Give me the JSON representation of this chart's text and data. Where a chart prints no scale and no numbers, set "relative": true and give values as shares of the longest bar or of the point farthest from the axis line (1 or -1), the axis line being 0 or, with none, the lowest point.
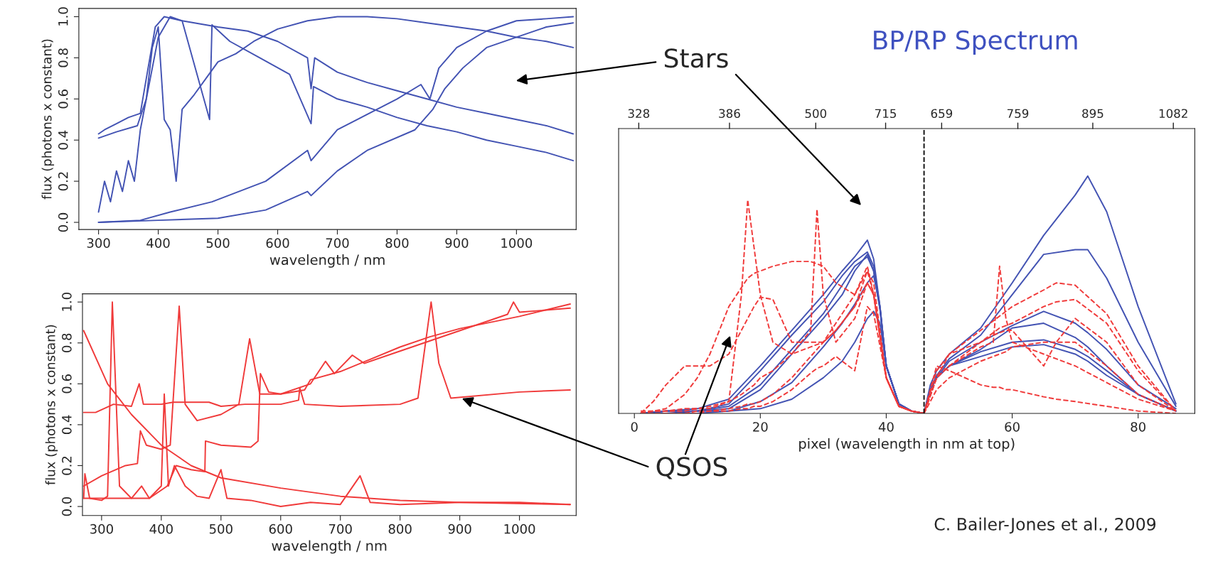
{
  "chart_data": [
    {
      "type": "line",
      "xlabel": "wavelength / nm",
      "ylabel": "flux (photons x constant)",
      "xlim": [
        267,
        1100
      ],
      "ylim": [
        -0.035,
        1.04
      ],
      "xticks": [
        300,
        400,
        500,
        600,
        700,
        800,
        900,
        1000
      ],
      "yticks": [
        {
          "value": 0,
          "label": "0.0"
        },
        {
          "value": 0.2,
          "label": "0.2"
        },
        {
          "value": 0.4,
          "label": "0.4"
        },
        {
          "value": 0.6,
          "label": "0.6"
        },
        {
          "value": 0.8,
          "label": "0.8"
        },
        {
          "value": 1,
          "label": "1.0"
        }
      ],
      "grid": false,
      "legend": false,
      "marker": "none",
      "line_style": "solid",
      "series": [
        {
          "color": "#4353b3",
          "x": [
            300,
            310,
            330,
            350,
            370,
            380,
            395,
            410,
            440,
            500,
            550,
            600,
            650,
            656,
            662,
            700,
            750,
            800,
            850,
            900,
            950,
            1000,
            1050,
            1095
          ],
          "values": [
            0.43,
            0.45,
            0.48,
            0.51,
            0.53,
            0.7,
            0.95,
            1.0,
            0.98,
            0.95,
            0.93,
            0.88,
            0.8,
            0.65,
            0.8,
            0.73,
            0.68,
            0.64,
            0.6,
            0.56,
            0.53,
            0.5,
            0.47,
            0.43
          ]
        },
        {
          "color": "#4353b3",
          "x": [
            300,
            330,
            365,
            380,
            400,
            420,
            440,
            486,
            490,
            520,
            570,
            620,
            656,
            660,
            700,
            750,
            800,
            850,
            900,
            950,
            1000,
            1050,
            1095
          ],
          "values": [
            0.41,
            0.44,
            0.47,
            0.6,
            0.9,
            1.0,
            0.98,
            0.5,
            0.96,
            0.88,
            0.8,
            0.72,
            0.48,
            0.66,
            0.6,
            0.56,
            0.51,
            0.47,
            0.44,
            0.4,
            0.37,
            0.34,
            0.3
          ]
        },
        {
          "color": "#4353b3",
          "x": [
            300,
            310,
            320,
            330,
            340,
            350,
            360,
            370,
            380,
            390,
            400,
            410,
            420,
            430,
            440,
            460,
            480,
            500,
            530,
            560,
            600,
            650,
            700,
            750,
            800,
            850,
            900,
            950,
            1000,
            1050,
            1095
          ],
          "values": [
            0.05,
            0.2,
            0.1,
            0.25,
            0.15,
            0.3,
            0.2,
            0.45,
            0.6,
            0.85,
            0.95,
            0.5,
            0.45,
            0.2,
            0.55,
            0.62,
            0.7,
            0.78,
            0.82,
            0.88,
            0.94,
            0.98,
            1.0,
            1.0,
            0.99,
            0.97,
            0.95,
            0.93,
            0.9,
            0.88,
            0.85
          ]
        },
        {
          "color": "#4353b3",
          "x": [
            300,
            370,
            420,
            490,
            580,
            650,
            656,
            700,
            800,
            840,
            855,
            870,
            900,
            950,
            1000,
            1050,
            1095
          ],
          "values": [
            0.0,
            0.01,
            0.05,
            0.1,
            0.2,
            0.35,
            0.3,
            0.45,
            0.6,
            0.67,
            0.6,
            0.75,
            0.85,
            0.93,
            0.98,
            0.99,
            1.0
          ]
        },
        {
          "color": "#4353b3",
          "x": [
            300,
            400,
            500,
            580,
            650,
            656,
            700,
            750,
            830,
            860,
            880,
            910,
            950,
            1000,
            1050,
            1095
          ],
          "values": [
            0.0,
            0.01,
            0.02,
            0.06,
            0.15,
            0.13,
            0.25,
            0.35,
            0.45,
            0.55,
            0.65,
            0.75,
            0.85,
            0.9,
            0.95,
            0.97
          ]
        }
      ]
    },
    {
      "type": "line",
      "xlabel": "wavelength / nm",
      "ylabel": "flux (photons x constant)",
      "xlim": [
        268,
        1095
      ],
      "ylim": [
        -0.044,
        1.04
      ],
      "xticks": [
        300,
        400,
        500,
        600,
        700,
        800,
        900,
        1000
      ],
      "yticks": [
        {
          "value": 0,
          "label": "0.0"
        },
        {
          "value": 0.2,
          "label": "0.2"
        },
        {
          "value": 0.4,
          "label": "0.4"
        },
        {
          "value": 0.6,
          "label": "0.6"
        },
        {
          "value": 0.8,
          "label": "0.8"
        },
        {
          "value": 1,
          "label": "1.0"
        }
      ],
      "grid": false,
      "legend": false,
      "marker": "none",
      "line_style": "solid",
      "series": [
        {
          "color": "#f03a3a",
          "x": [
            270,
            290,
            320,
            350,
            363,
            370,
            400,
            420,
            480,
            500,
            540,
            600,
            630,
            632,
            640,
            700,
            800,
            830,
            852,
            865,
            885,
            1000,
            1085
          ],
          "values": [
            0.46,
            0.46,
            0.5,
            0.49,
            0.6,
            0.5,
            0.5,
            0.51,
            0.51,
            0.49,
            0.5,
            0.5,
            0.52,
            0.58,
            0.5,
            0.49,
            0.5,
            0.53,
            1.0,
            0.7,
            0.53,
            0.56,
            0.57
          ]
        },
        {
          "color": "#f03a3a",
          "x": [
            270,
            272,
            280,
            300,
            310,
            318,
            330,
            350,
            367,
            380,
            400,
            405,
            412,
            422,
            440,
            460,
            480,
            500,
            510,
            550,
            600,
            650,
            700,
            733,
            750,
            800,
            900,
            1000,
            1085
          ],
          "values": [
            0.04,
            0.16,
            0.04,
            0.03,
            0.05,
            1.0,
            0.1,
            0.04,
            0.1,
            0.04,
            0.1,
            0.55,
            0.1,
            0.2,
            0.1,
            0.05,
            0.04,
            0.18,
            0.04,
            0.03,
            0.0,
            0.02,
            0.01,
            0.15,
            0.02,
            0.01,
            0.02,
            0.02,
            0.01
          ]
        },
        {
          "color": "#f03a3a",
          "x": [
            270,
            300,
            340,
            360,
            365,
            375,
            400,
            415,
            430,
            440,
            460,
            500,
            530,
            548,
            565,
            600,
            650,
            675,
            690,
            720,
            740,
            800,
            900,
            980,
            990,
            1000,
            1085
          ],
          "values": [
            0.1,
            0.15,
            0.2,
            0.21,
            0.37,
            0.3,
            0.28,
            0.3,
            0.98,
            0.5,
            0.42,
            0.45,
            0.5,
            0.82,
            0.55,
            0.55,
            0.6,
            0.71,
            0.65,
            0.74,
            0.7,
            0.76,
            0.86,
            0.94,
            1.0,
            0.95,
            0.97
          ]
        },
        {
          "color": "#f03a3a",
          "x": [
            270,
            310,
            350,
            400,
            450,
            500,
            600,
            700,
            800,
            900,
            1085
          ],
          "values": [
            0.86,
            0.6,
            0.45,
            0.3,
            0.2,
            0.14,
            0.09,
            0.05,
            0.03,
            0.02,
            0.01
          ]
        },
        {
          "color": "#f03a3a",
          "x": [
            270,
            380,
            410,
            425,
            450,
            473,
            474,
            500,
            550,
            562,
            566,
            580,
            600,
            640,
            650,
            700,
            750,
            800,
            850,
            900,
            1000,
            1085
          ],
          "values": [
            0.04,
            0.04,
            0.1,
            0.2,
            0.18,
            0.17,
            0.32,
            0.3,
            0.29,
            0.32,
            0.65,
            0.56,
            0.55,
            0.57,
            0.62,
            0.66,
            0.72,
            0.78,
            0.83,
            0.87,
            0.93,
            0.99
          ]
        }
      ]
    },
    {
      "type": "line",
      "title": "BP/RP Spectrum",
      "xlabel": "pixel (wavelength in nm at top)",
      "relative": true,
      "xlim": [
        -2.5,
        89
      ],
      "xticks": [
        0,
        20,
        40,
        60,
        80
      ],
      "grid": false,
      "legend": false,
      "marker": "none",
      "ref_lines": [
        {
          "axis": "x",
          "value": 46,
          "color": "#000000",
          "line_style": "dashed"
        }
      ],
      "annotations": [
        "Stars",
        "QSOS",
        "C. Bailer-Jones et al., 2009",
        "328",
        "386",
        "500",
        "715",
        "659",
        "759",
        "895",
        "1082"
      ],
      "series": [
        {
          "color": "#4353b3",
          "line_style": "solid",
          "x": [
            1,
            5,
            10,
            15,
            20,
            25,
            30,
            33,
            35,
            37,
            38,
            39,
            40,
            42,
            44,
            46,
            47,
            48,
            50,
            55,
            60,
            65,
            70,
            72,
            75,
            80,
            86
          ],
          "values": [
            0.0,
            0.01,
            0.02,
            0.06,
            0.2,
            0.35,
            0.5,
            0.6,
            0.66,
            0.73,
            0.65,
            0.45,
            0.2,
            0.04,
            0.01,
            0.0,
            0.12,
            0.18,
            0.25,
            0.36,
            0.55,
            0.75,
            0.92,
            1.0,
            0.85,
            0.45,
            0.04
          ]
        },
        {
          "color": "#4353b3",
          "line_style": "solid",
          "x": [
            1,
            5,
            10,
            15,
            20,
            25,
            30,
            33,
            35,
            37,
            38,
            39,
            40,
            42,
            44,
            46,
            47,
            48,
            50,
            55,
            60,
            65,
            70,
            72,
            75,
            80,
            86
          ],
          "values": [
            0.0,
            0.01,
            0.01,
            0.04,
            0.18,
            0.33,
            0.47,
            0.58,
            0.64,
            0.68,
            0.62,
            0.45,
            0.2,
            0.04,
            0.01,
            0.0,
            0.1,
            0.16,
            0.23,
            0.33,
            0.5,
            0.67,
            0.69,
            0.69,
            0.57,
            0.3,
            0.03
          ]
        },
        {
          "color": "#4353b3",
          "line_style": "solid",
          "x": [
            1,
            5,
            10,
            15,
            20,
            25,
            30,
            33,
            35,
            37,
            38,
            39,
            40,
            42,
            44,
            46,
            47,
            48,
            50,
            55,
            60,
            65,
            70,
            72,
            75,
            80,
            86
          ],
          "values": [
            0.0,
            0.01,
            0.01,
            0.02,
            0.1,
            0.25,
            0.4,
            0.5,
            0.6,
            0.67,
            0.6,
            0.44,
            0.2,
            0.04,
            0.01,
            0.0,
            0.1,
            0.15,
            0.22,
            0.3,
            0.37,
            0.43,
            0.38,
            0.34,
            0.27,
            0.12,
            0.02
          ]
        },
        {
          "color": "#4353b3",
          "line_style": "solid",
          "x": [
            1,
            5,
            10,
            15,
            20,
            25,
            30,
            33,
            35,
            37,
            38,
            39,
            40,
            42,
            44,
            46,
            47,
            48,
            50,
            55,
            60,
            65,
            70,
            72,
            75,
            80,
            86
          ],
          "values": [
            0.0,
            0.0,
            0.01,
            0.01,
            0.05,
            0.13,
            0.28,
            0.38,
            0.46,
            0.55,
            0.58,
            0.45,
            0.2,
            0.04,
            0.01,
            0.0,
            0.1,
            0.15,
            0.2,
            0.26,
            0.3,
            0.31,
            0.27,
            0.24,
            0.18,
            0.08,
            0.01
          ]
        },
        {
          "color": "#4353b3",
          "line_style": "solid",
          "x": [
            1,
            5,
            10,
            15,
            20,
            25,
            30,
            33,
            35,
            37,
            38,
            39,
            40,
            42,
            44,
            46,
            47,
            48,
            50,
            55,
            60,
            65,
            70,
            72,
            75,
            80,
            86
          ],
          "values": [
            0.0,
            0.0,
            0.0,
            0.01,
            0.02,
            0.06,
            0.15,
            0.22,
            0.3,
            0.4,
            0.43,
            0.38,
            0.2,
            0.04,
            0.01,
            0.0,
            0.1,
            0.15,
            0.2,
            0.24,
            0.28,
            0.29,
            0.25,
            0.22,
            0.16,
            0.08,
            0.01
          ]
        },
        {
          "color": "#4353b3",
          "line_style": "solid",
          "x": [
            1,
            5,
            10,
            15,
            20,
            25,
            30,
            33,
            35,
            37,
            38,
            39,
            40,
            42,
            44,
            46,
            47,
            48,
            50,
            55,
            60,
            65,
            70,
            72,
            75,
            80,
            86
          ],
          "values": [
            0.0,
            0.01,
            0.01,
            0.03,
            0.12,
            0.27,
            0.42,
            0.54,
            0.62,
            0.66,
            0.6,
            0.44,
            0.2,
            0.04,
            0.01,
            0.0,
            0.1,
            0.15,
            0.2,
            0.27,
            0.36,
            0.38,
            0.32,
            0.28,
            0.2,
            0.08,
            0.01
          ]
        },
        {
          "color": "#f03a3a",
          "line_style": "dashed",
          "x": [
            1,
            3,
            5,
            8,
            10,
            12,
            15,
            17,
            18,
            19,
            20,
            22,
            25,
            28,
            29,
            30,
            32,
            35,
            37,
            38,
            40,
            42,
            44,
            46,
            48,
            50,
            55,
            57,
            58,
            59,
            60,
            65,
            67,
            70,
            75,
            80,
            86
          ],
          "values": [
            0.01,
            0.01,
            0.01,
            0.02,
            0.02,
            0.03,
            0.05,
            0.5,
            0.9,
            0.7,
            0.5,
            0.3,
            0.25,
            0.28,
            0.29,
            0.3,
            0.35,
            0.45,
            0.6,
            0.55,
            0.15,
            0.03,
            0.01,
            0.0,
            0.15,
            0.2,
            0.28,
            0.3,
            0.62,
            0.4,
            0.3,
            0.25,
            0.23,
            0.2,
            0.13,
            0.06,
            0.01
          ]
        },
        {
          "color": "#f03a3a",
          "line_style": "dashed",
          "x": [
            1,
            3,
            5,
            8,
            10,
            12,
            15,
            17,
            18,
            19,
            20,
            22,
            25,
            28,
            29,
            30,
            32,
            35,
            37,
            38,
            40,
            42,
            44,
            46,
            48,
            50,
            55,
            57,
            58,
            59,
            60,
            65,
            67,
            70,
            75,
            80,
            86
          ],
          "values": [
            0.0,
            0.01,
            0.01,
            0.01,
            0.02,
            0.02,
            0.05,
            0.08,
            0.1,
            0.12,
            0.15,
            0.18,
            0.25,
            0.35,
            0.86,
            0.5,
            0.3,
            0.4,
            0.55,
            0.5,
            0.15,
            0.03,
            0.01,
            0.0,
            0.15,
            0.25,
            0.3,
            0.33,
            0.34,
            0.35,
            0.35,
            0.2,
            0.3,
            0.4,
            0.3,
            0.12,
            0.01
          ]
        },
        {
          "color": "#f03a3a",
          "line_style": "dashed",
          "x": [
            1,
            3,
            5,
            8,
            10,
            12,
            15,
            17,
            18,
            19,
            20,
            22,
            25,
            28,
            29,
            30,
            32,
            35,
            37,
            38,
            40,
            42,
            44,
            46,
            48,
            50,
            55,
            57,
            58,
            59,
            60,
            65,
            67,
            70,
            75,
            80,
            86
          ],
          "values": [
            0.0,
            0.01,
            0.02,
            0.08,
            0.15,
            0.25,
            0.45,
            0.53,
            0.57,
            0.59,
            0.6,
            0.62,
            0.64,
            0.64,
            0.63,
            0.62,
            0.55,
            0.5,
            0.62,
            0.5,
            0.15,
            0.03,
            0.01,
            0.0,
            0.2,
            0.18,
            0.12,
            0.11,
            0.11,
            0.1,
            0.1,
            0.07,
            0.06,
            0.05,
            0.03,
            0.01,
            0.0
          ]
        },
        {
          "color": "#f03a3a",
          "line_style": "dashed",
          "x": [
            1,
            3,
            5,
            8,
            10,
            12,
            15,
            17,
            18,
            19,
            20,
            22,
            25,
            28,
            29,
            30,
            32,
            35,
            37,
            38,
            40,
            42,
            44,
            46,
            48,
            50,
            55,
            57,
            58,
            59,
            60,
            65,
            67,
            70,
            75,
            80,
            86
          ],
          "values": [
            0.0,
            0.05,
            0.12,
            0.2,
            0.2,
            0.2,
            0.25,
            0.35,
            0.4,
            0.45,
            0.49,
            0.48,
            0.3,
            0.3,
            0.3,
            0.3,
            0.35,
            0.45,
            0.55,
            0.5,
            0.15,
            0.03,
            0.01,
            0.0,
            0.18,
            0.25,
            0.35,
            0.39,
            0.41,
            0.43,
            0.45,
            0.52,
            0.55,
            0.54,
            0.42,
            0.2,
            0.01
          ]
        },
        {
          "color": "#f03a3a",
          "line_style": "dashed",
          "x": [
            1,
            3,
            5,
            8,
            10,
            12,
            15,
            17,
            18,
            19,
            20,
            22,
            25,
            28,
            29,
            30,
            32,
            35,
            37,
            38,
            40,
            42,
            44,
            46,
            48,
            50,
            55,
            57,
            58,
            59,
            60,
            65,
            67,
            70,
            75,
            80,
            86
          ],
          "values": [
            0.0,
            0.0,
            0.0,
            0.0,
            0.0,
            0.01,
            0.02,
            0.03,
            0.04,
            0.04,
            0.05,
            0.08,
            0.15,
            0.24,
            0.27,
            0.3,
            0.38,
            0.5,
            0.6,
            0.5,
            0.15,
            0.03,
            0.01,
            0.0,
            0.15,
            0.2,
            0.3,
            0.34,
            0.36,
            0.37,
            0.38,
            0.45,
            0.47,
            0.48,
            0.38,
            0.18,
            0.01
          ]
        },
        {
          "color": "#f03a3a",
          "line_style": "dashed",
          "x": [
            1,
            3,
            5,
            8,
            10,
            12,
            15,
            17,
            18,
            19,
            20,
            22,
            25,
            28,
            29,
            30,
            32,
            35,
            37,
            38,
            40,
            42,
            44,
            46,
            48,
            50,
            55,
            57,
            58,
            59,
            60,
            65,
            67,
            70,
            75,
            80,
            86
          ],
          "values": [
            0.0,
            0.0,
            0.0,
            0.0,
            0.01,
            0.01,
            0.01,
            0.02,
            0.02,
            0.03,
            0.03,
            0.05,
            0.1,
            0.17,
            0.19,
            0.2,
            0.24,
            0.18,
            0.45,
            0.42,
            0.15,
            0.03,
            0.01,
            0.0,
            0.1,
            0.15,
            0.22,
            0.24,
            0.25,
            0.26,
            0.28,
            0.3,
            0.3,
            0.3,
            0.2,
            0.08,
            0.01
          ]
        }
      ]
    }
  ]
}
